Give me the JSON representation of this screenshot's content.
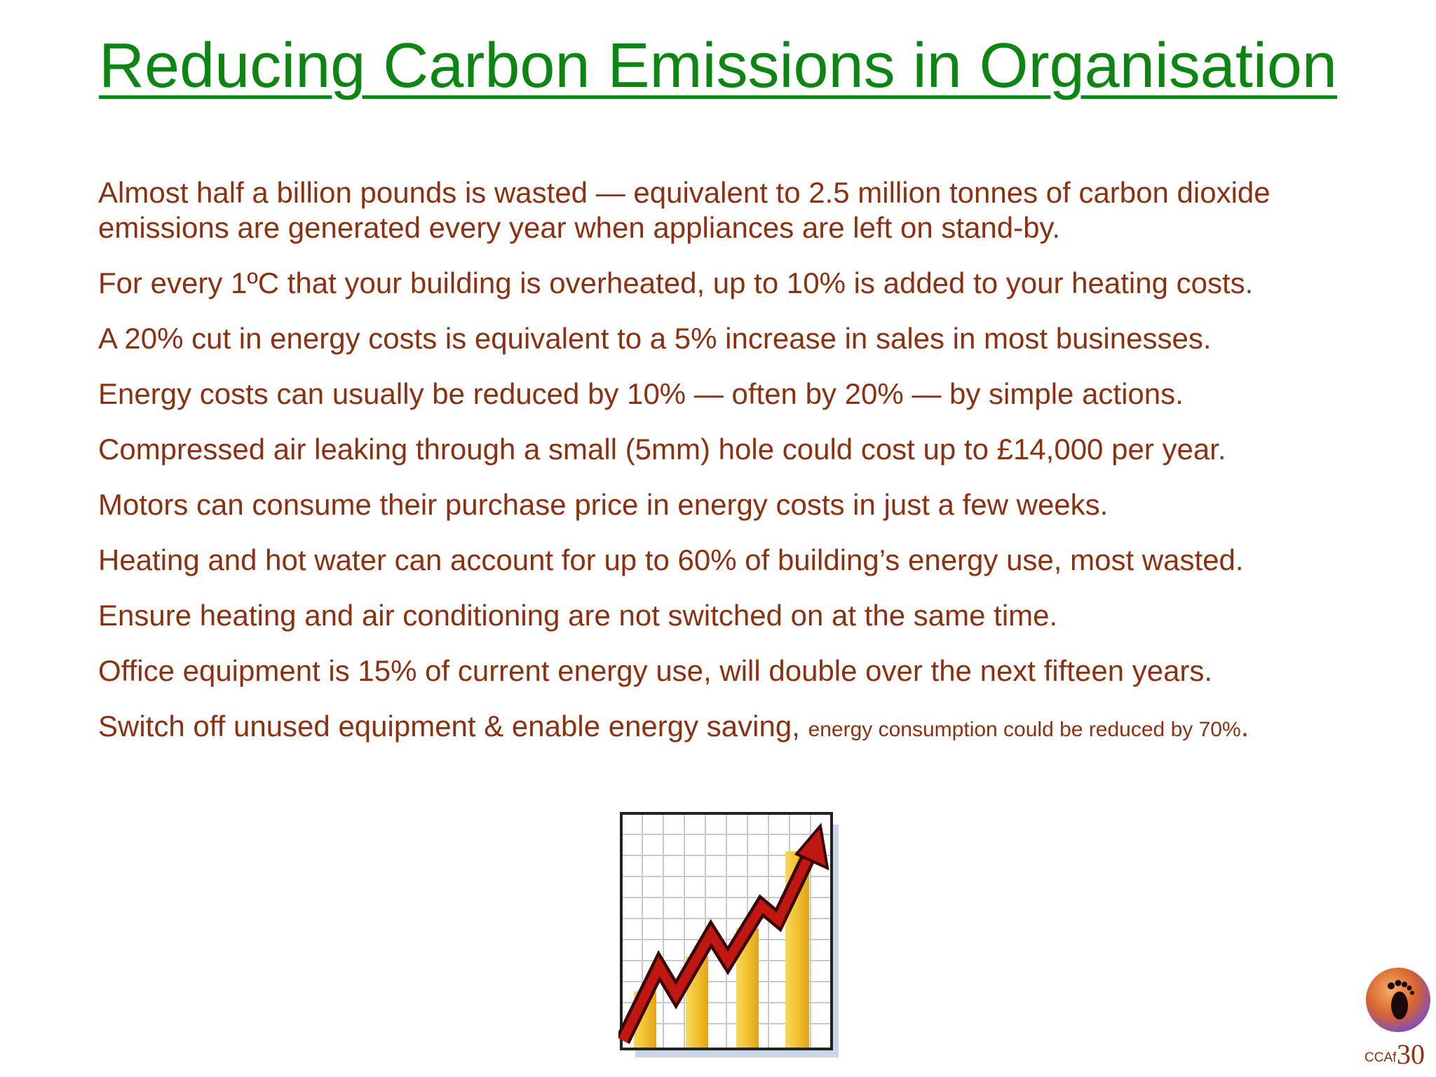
{
  "title": "Reducing Carbon Emissions in Organisation",
  "bullets": [
    "Almost half a billion pounds is wasted — equivalent to 2.5 million tonnes of carbon dioxide emissions are generated every year when appliances are left on stand-by.",
    "For every 1ºC that your building is overheated, up to 10% is added to your heating costs.",
    "A 20% cut in energy costs is equivalent to a 5% increase in sales in most businesses.",
    "Energy costs can usually be reduced by 10% — often by 20% — by simple actions.",
    "Compressed air leaking through a small (5mm) hole could cost up to £14,000 per year.",
    "Motors can consume their purchase price in energy costs in just a few weeks.",
    "Heating and hot water can account for up to 60% of building’s energy use, most wasted.",
    "Ensure heating and air conditioning are not switched on at the same time.",
    "Office equipment is 15% of current energy use, will double over the next fifteen years."
  ],
  "last_bullet": {
    "main": "Switch off unused equipment & enable energy saving,",
    "small": "energy consumption could be reduced by 70%",
    "end": "."
  },
  "footer": {
    "code": "CCAf",
    "page_number": "30"
  },
  "colors": {
    "title": "#0c8512",
    "body_text": "#8c3010",
    "chart_bars": "#f2c12e",
    "chart_arrow": "#c01810"
  },
  "icons": {
    "chart": "rising-chart-icon",
    "logo": "footprint-globe-logo"
  }
}
